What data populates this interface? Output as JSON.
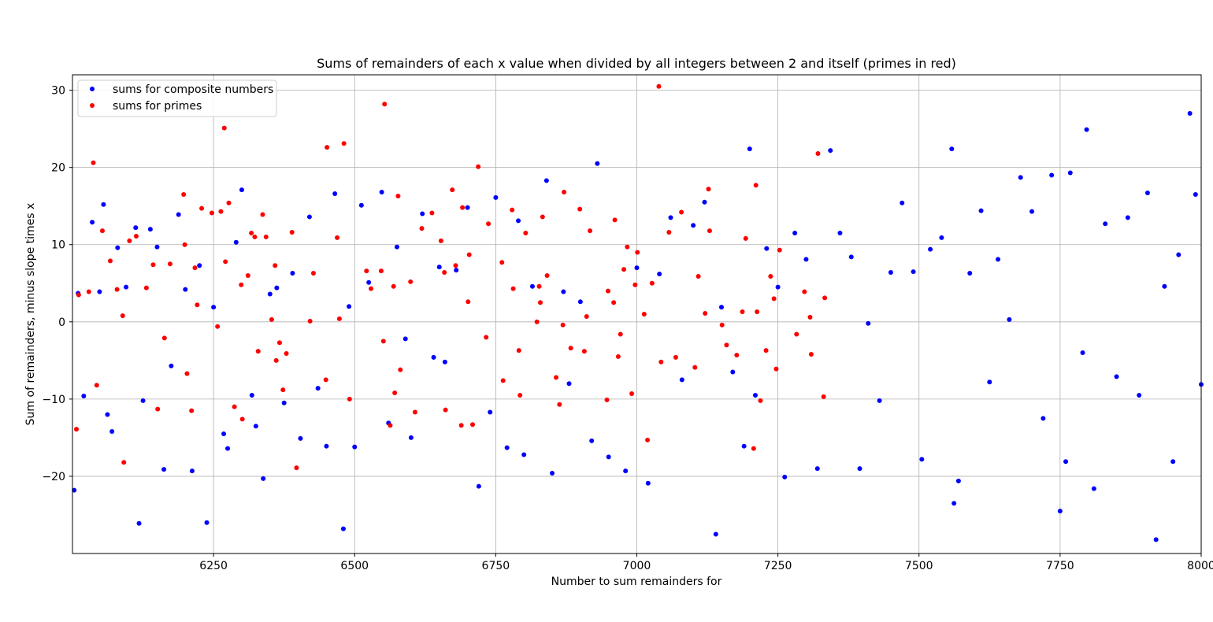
{
  "chart_data": {
    "type": "scatter",
    "title": "Sums of remainders of each x value when divided by all integers between 2 and itself (primes in red)",
    "xlabel": "Number to sum remainders for",
    "ylabel": "Sum of remainders, minus slope times x",
    "xlim": [
      6000,
      8000
    ],
    "ylim": [
      -30,
      32
    ],
    "x_ticks": [
      6250,
      6500,
      6750,
      7000,
      7250,
      7500,
      7750,
      8000
    ],
    "y_ticks": [
      -20,
      -10,
      0,
      10,
      20,
      30
    ],
    "grid": true,
    "legend_position": "top-left",
    "series": [
      {
        "name": "sums for composite numbers",
        "color": "#0000ff",
        "points": [
          [
            6003,
            -21.8
          ],
          [
            6010,
            3.7
          ],
          [
            6020,
            -9.6
          ],
          [
            6035,
            12.9
          ],
          [
            6048,
            3.9
          ],
          [
            6055,
            15.2
          ],
          [
            6062,
            -12.0
          ],
          [
            6070,
            -14.2
          ],
          [
            6080,
            9.6
          ],
          [
            6095,
            4.5
          ],
          [
            6112,
            12.2
          ],
          [
            6118,
            -26.1
          ],
          [
            6125,
            -10.2
          ],
          [
            6138,
            12.0
          ],
          [
            6150,
            9.7
          ],
          [
            6162,
            -19.1
          ],
          [
            6175,
            -5.7
          ],
          [
            6188,
            13.9
          ],
          [
            6200,
            4.2
          ],
          [
            6212,
            -19.3
          ],
          [
            6225,
            7.3
          ],
          [
            6238,
            -26.0
          ],
          [
            6250,
            1.9
          ],
          [
            6268,
            -14.5
          ],
          [
            6275,
            -16.4
          ],
          [
            6290,
            10.3
          ],
          [
            6300,
            17.1
          ],
          [
            6318,
            -9.5
          ],
          [
            6325,
            -13.5
          ],
          [
            6338,
            -20.3
          ],
          [
            6350,
            3.6
          ],
          [
            6362,
            4.4
          ],
          [
            6375,
            -10.5
          ],
          [
            6390,
            6.3
          ],
          [
            6404,
            -15.1
          ],
          [
            6420,
            13.6
          ],
          [
            6435,
            -8.6
          ],
          [
            6450,
            -16.1
          ],
          [
            6465,
            16.6
          ],
          [
            6480,
            -26.8
          ],
          [
            6490,
            2.0
          ],
          [
            6500,
            -16.2
          ],
          [
            6512,
            15.1
          ],
          [
            6525,
            5.1
          ],
          [
            6548,
            16.8
          ],
          [
            6560,
            -13.1
          ],
          [
            6575,
            9.7
          ],
          [
            6590,
            -2.2
          ],
          [
            6600,
            -15.0
          ],
          [
            6620,
            14.0
          ],
          [
            6640,
            -4.6
          ],
          [
            6650,
            7.1
          ],
          [
            6660,
            -5.2
          ],
          [
            6680,
            6.7
          ],
          [
            6700,
            14.8
          ],
          [
            6720,
            -21.3
          ],
          [
            6740,
            -11.7
          ],
          [
            6750,
            16.1
          ],
          [
            6770,
            -16.3
          ],
          [
            6790,
            13.1
          ],
          [
            6800,
            -17.2
          ],
          [
            6815,
            4.6
          ],
          [
            6840,
            18.3
          ],
          [
            6850,
            -19.6
          ],
          [
            6870,
            3.9
          ],
          [
            6880,
            -8.0
          ],
          [
            6900,
            2.6
          ],
          [
            6920,
            -15.4
          ],
          [
            6930,
            20.5
          ],
          [
            6950,
            -17.5
          ],
          [
            6980,
            -19.3
          ],
          [
            7000,
            7.0
          ],
          [
            7020,
            -20.9
          ],
          [
            7040,
            6.2
          ],
          [
            7060,
            13.5
          ],
          [
            7080,
            -7.5
          ],
          [
            7100,
            12.5
          ],
          [
            7120,
            15.5
          ],
          [
            7140,
            -27.5
          ],
          [
            7150,
            1.9
          ],
          [
            7170,
            -6.5
          ],
          [
            7190,
            -16.1
          ],
          [
            7200,
            22.4
          ],
          [
            7210,
            -9.5
          ],
          [
            7230,
            9.5
          ],
          [
            7250,
            4.5
          ],
          [
            7262,
            -20.1
          ],
          [
            7280,
            11.5
          ],
          [
            7300,
            8.1
          ],
          [
            7320,
            -19.0
          ],
          [
            7343,
            22.2
          ],
          [
            7360,
            11.5
          ],
          [
            7380,
            8.4
          ],
          [
            7395,
            -19.0
          ],
          [
            7410,
            -0.2
          ],
          [
            7430,
            -10.2
          ],
          [
            7450,
            6.4
          ],
          [
            7470,
            15.4
          ],
          [
            7490,
            6.5
          ],
          [
            7505,
            -17.8
          ],
          [
            7520,
            9.4
          ],
          [
            7540,
            10.9
          ],
          [
            7558,
            22.4
          ],
          [
            7562,
            -23.5
          ],
          [
            7570,
            -20.6
          ],
          [
            7590,
            6.3
          ],
          [
            7610,
            14.4
          ],
          [
            7625,
            -7.8
          ],
          [
            7640,
            8.1
          ],
          [
            7660,
            0.3
          ],
          [
            7680,
            18.7
          ],
          [
            7700,
            14.3
          ],
          [
            7720,
            -12.5
          ],
          [
            7735,
            19.0
          ],
          [
            7750,
            -24.5
          ],
          [
            7760,
            -18.1
          ],
          [
            7768,
            19.3
          ],
          [
            7790,
            -4.0
          ],
          [
            7797,
            24.9
          ],
          [
            7810,
            -21.6
          ],
          [
            7830,
            12.7
          ],
          [
            7850,
            -7.1
          ],
          [
            7870,
            13.5
          ],
          [
            7890,
            -9.5
          ],
          [
            7905,
            16.7
          ],
          [
            7920,
            -28.2
          ],
          [
            7935,
            4.6
          ],
          [
            7950,
            -18.1
          ],
          [
            7960,
            8.7
          ],
          [
            7980,
            27.0
          ],
          [
            7990,
            16.5
          ],
          [
            8000,
            -8.1
          ]
        ]
      },
      {
        "name": "sums for primes",
        "color": "#ff0000",
        "points": [
          [
            6007,
            -13.9
          ],
          [
            6011,
            3.5
          ],
          [
            6029,
            3.9
          ],
          [
            6037,
            20.6
          ],
          [
            6043,
            -8.2
          ],
          [
            6053,
            11.8
          ],
          [
            6067,
            7.9
          ],
          [
            6079,
            4.2
          ],
          [
            6089,
            0.8
          ],
          [
            6091,
            -18.2
          ],
          [
            6101,
            10.5
          ],
          [
            6113,
            11.1
          ],
          [
            6131,
            4.4
          ],
          [
            6143,
            7.4
          ],
          [
            6151,
            -11.3
          ],
          [
            6163,
            -2.1
          ],
          [
            6173,
            7.5
          ],
          [
            6197,
            16.5
          ],
          [
            6199,
            10.0
          ],
          [
            6203,
            -6.7
          ],
          [
            6211,
            -11.5
          ],
          [
            6217,
            7.0
          ],
          [
            6221,
            2.2
          ],
          [
            6229,
            14.7
          ],
          [
            6247,
            14.1
          ],
          [
            6257,
            -0.6
          ],
          [
            6263,
            14.3
          ],
          [
            6269,
            25.1
          ],
          [
            6271,
            7.8
          ],
          [
            6277,
            15.4
          ],
          [
            6287,
            -11.0
          ],
          [
            6299,
            4.8
          ],
          [
            6301,
            -12.6
          ],
          [
            6311,
            6.0
          ],
          [
            6317,
            11.5
          ],
          [
            6323,
            11.0
          ],
          [
            6329,
            -3.8
          ],
          [
            6337,
            13.9
          ],
          [
            6343,
            11.0
          ],
          [
            6353,
            0.3
          ],
          [
            6359,
            7.3
          ],
          [
            6361,
            -5.0
          ],
          [
            6367,
            -2.7
          ],
          [
            6373,
            -8.8
          ],
          [
            6379,
            -4.1
          ],
          [
            6389,
            11.6
          ],
          [
            6397,
            -18.9
          ],
          [
            6421,
            0.1
          ],
          [
            6427,
            6.3
          ],
          [
            6449,
            -7.5
          ],
          [
            6451,
            22.6
          ],
          [
            6469,
            10.9
          ],
          [
            6473,
            0.4
          ],
          [
            6481,
            23.1
          ],
          [
            6491,
            -10.0
          ],
          [
            6521,
            6.6
          ],
          [
            6529,
            4.3
          ],
          [
            6547,
            6.6
          ],
          [
            6551,
            -2.5
          ],
          [
            6553,
            28.2
          ],
          [
            6563,
            -13.4
          ],
          [
            6569,
            4.6
          ],
          [
            6571,
            -9.2
          ],
          [
            6577,
            16.3
          ],
          [
            6581,
            -6.2
          ],
          [
            6599,
            5.2
          ],
          [
            6607,
            -11.7
          ],
          [
            6619,
            12.1
          ],
          [
            6637,
            14.1
          ],
          [
            6653,
            10.5
          ],
          [
            6659,
            6.4
          ],
          [
            6661,
            -11.4
          ],
          [
            6673,
            17.1
          ],
          [
            6679,
            7.3
          ],
          [
            6689,
            -13.4
          ],
          [
            6691,
            14.8
          ],
          [
            6701,
            2.6
          ],
          [
            6703,
            8.7
          ],
          [
            6709,
            -13.3
          ],
          [
            6719,
            20.1
          ],
          [
            6733,
            -2.0
          ],
          [
            6737,
            12.7
          ],
          [
            6761,
            7.7
          ],
          [
            6763,
            -7.6
          ],
          [
            6779,
            14.5
          ],
          [
            6781,
            4.3
          ],
          [
            6791,
            -3.7
          ],
          [
            6793,
            -9.5
          ],
          [
            6803,
            11.5
          ],
          [
            6823,
            0.0
          ],
          [
            6827,
            4.6
          ],
          [
            6829,
            2.5
          ],
          [
            6833,
            13.6
          ],
          [
            6841,
            6.0
          ],
          [
            6857,
            -7.2
          ],
          [
            6863,
            -10.7
          ],
          [
            6869,
            -0.4
          ],
          [
            6871,
            16.8
          ],
          [
            6883,
            -3.4
          ],
          [
            6899,
            14.6
          ],
          [
            6907,
            -3.8
          ],
          [
            6911,
            0.7
          ],
          [
            6917,
            11.8
          ],
          [
            6947,
            -10.1
          ],
          [
            6949,
            4.0
          ],
          [
            6959,
            2.5
          ],
          [
            6961,
            13.2
          ],
          [
            6967,
            -4.5
          ],
          [
            6971,
            -1.6
          ],
          [
            6977,
            6.8
          ],
          [
            6983,
            9.7
          ],
          [
            6991,
            -9.3
          ],
          [
            6997,
            4.8
          ],
          [
            7001,
            9.0
          ],
          [
            7013,
            1.0
          ],
          [
            7019,
            -15.3
          ],
          [
            7027,
            5.0
          ],
          [
            7039,
            30.5
          ],
          [
            7043,
            -5.2
          ],
          [
            7057,
            11.6
          ],
          [
            7069,
            -4.6
          ],
          [
            7079,
            14.2
          ],
          [
            7103,
            -5.9
          ],
          [
            7109,
            5.9
          ],
          [
            7121,
            1.1
          ],
          [
            7127,
            17.2
          ],
          [
            7129,
            11.8
          ],
          [
            7151,
            -0.4
          ],
          [
            7159,
            -3.0
          ],
          [
            7177,
            -4.3
          ],
          [
            7187,
            1.3
          ],
          [
            7193,
            10.8
          ],
          [
            7207,
            -16.4
          ],
          [
            7211,
            17.7
          ],
          [
            7213,
            1.3
          ],
          [
            7219,
            -10.2
          ],
          [
            7229,
            -3.7
          ],
          [
            7237,
            5.9
          ],
          [
            7243,
            3.0
          ],
          [
            7247,
            -6.1
          ],
          [
            7253,
            9.3
          ],
          [
            7283,
            -1.6
          ],
          [
            7297,
            3.9
          ],
          [
            7307,
            0.6
          ],
          [
            7309,
            -4.2
          ],
          [
            7321,
            21.8
          ],
          [
            7331,
            -9.7
          ],
          [
            7333,
            3.1
          ]
        ]
      }
    ]
  }
}
